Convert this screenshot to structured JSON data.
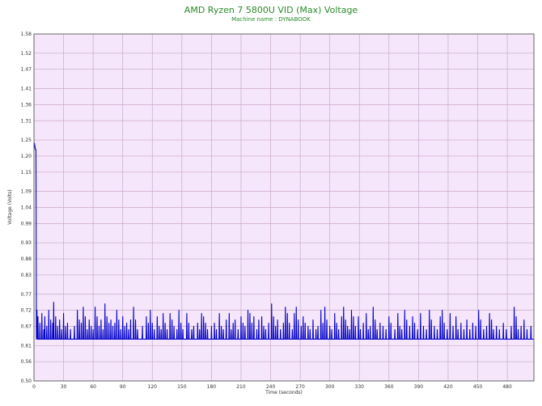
{
  "colors": {
    "title": "#2a8a2a",
    "plot_bg": "#f5e6fb",
    "grid": "#c9a9c9",
    "series": "#0000c8",
    "axis": "#666666"
  },
  "chart_data": {
    "type": "line",
    "title": "AMD Ryzen 7 5800U VID (Max) Voltage",
    "subtitle": "Machine name : DYNABOOK",
    "xlabel": "Time (seconds)",
    "ylabel": "Voltage (Volts)",
    "xlim": [
      0,
      507
    ],
    "ylim": [
      0.5,
      1.58
    ],
    "x_ticks": [
      "0",
      "30",
      "60",
      "90",
      "120",
      "150",
      "180",
      "210",
      "240",
      "270",
      "300",
      "330",
      "360",
      "390",
      "420",
      "450",
      "480"
    ],
    "y_ticks": [
      "0.50",
      "0.56",
      "0.61",
      "0.67",
      "0.72",
      "0.77",
      "0.83",
      "0.88",
      "0.93",
      "0.99",
      "1.04",
      "1.09",
      "1.15",
      "1.20",
      "1.25",
      "1.31",
      "1.36",
      "1.41",
      "1.47",
      "1.52",
      "1.58"
    ],
    "grid": true,
    "legend": "none",
    "series": [
      {
        "baseline": 0.63,
        "start": [
          [
            0,
            1.22
          ],
          [
            0.5,
            1.24
          ],
          [
            1,
            1.23
          ],
          [
            1.5,
            1.22
          ],
          [
            2,
            1.22
          ],
          [
            2.5,
            0.63
          ],
          [
            3,
            0.72
          ],
          [
            3.5,
            0.63
          ]
        ],
        "spikes": [
          [
            4,
            0.7
          ],
          [
            6,
            0.68
          ],
          [
            8,
            0.71
          ],
          [
            10,
            0.66
          ],
          [
            11,
            0.7
          ],
          [
            13,
            0.67
          ],
          [
            15,
            0.72
          ],
          [
            17,
            0.69
          ],
          [
            19,
            0.68
          ],
          [
            20,
            0.745
          ],
          [
            22,
            0.7
          ],
          [
            24,
            0.67
          ],
          [
            26,
            0.69
          ],
          [
            28,
            0.66
          ],
          [
            30,
            0.71
          ],
          [
            32,
            0.67
          ],
          [
            34,
            0.68
          ],
          [
            37,
            0.66
          ],
          [
            41,
            0.67
          ],
          [
            44,
            0.72
          ],
          [
            46,
            0.69
          ],
          [
            48,
            0.68
          ],
          [
            50,
            0.73
          ],
          [
            52,
            0.7
          ],
          [
            54,
            0.66
          ],
          [
            56,
            0.69
          ],
          [
            58,
            0.67
          ],
          [
            60,
            0.66
          ],
          [
            62,
            0.73
          ],
          [
            64,
            0.7
          ],
          [
            66,
            0.67
          ],
          [
            68,
            0.69
          ],
          [
            70,
            0.66
          ],
          [
            72,
            0.74
          ],
          [
            74,
            0.7
          ],
          [
            76,
            0.68
          ],
          [
            78,
            0.69
          ],
          [
            80,
            0.67
          ],
          [
            82,
            0.68
          ],
          [
            84,
            0.72
          ],
          [
            86,
            0.69
          ],
          [
            88,
            0.66
          ],
          [
            90,
            0.7
          ],
          [
            92,
            0.67
          ],
          [
            94,
            0.68
          ],
          [
            96,
            0.66
          ],
          [
            98,
            0.69
          ],
          [
            101,
            0.73
          ],
          [
            103,
            0.69
          ],
          [
            105,
            0.66
          ],
          [
            110,
            0.67
          ],
          [
            114,
            0.7
          ],
          [
            116,
            0.68
          ],
          [
            118,
            0.72
          ],
          [
            120,
            0.68
          ],
          [
            122,
            0.66
          ],
          [
            125,
            0.7
          ],
          [
            127,
            0.67
          ],
          [
            129,
            0.66
          ],
          [
            131,
            0.71
          ],
          [
            133,
            0.68
          ],
          [
            135,
            0.66
          ],
          [
            138,
            0.71
          ],
          [
            140,
            0.69
          ],
          [
            142,
            0.67
          ],
          [
            145,
            0.66
          ],
          [
            147,
            0.72
          ],
          [
            149,
            0.68
          ],
          [
            151,
            0.66
          ],
          [
            155,
            0.71
          ],
          [
            157,
            0.68
          ],
          [
            160,
            0.66
          ],
          [
            162,
            0.67
          ],
          [
            166,
            0.68
          ],
          [
            168,
            0.66
          ],
          [
            170,
            0.71
          ],
          [
            172,
            0.7
          ],
          [
            174,
            0.68
          ],
          [
            176,
            0.66
          ],
          [
            180,
            0.67
          ],
          [
            183,
            0.68
          ],
          [
            185,
            0.66
          ],
          [
            188,
            0.71
          ],
          [
            190,
            0.67
          ],
          [
            192,
            0.66
          ],
          [
            195,
            0.69
          ],
          [
            198,
            0.71
          ],
          [
            200,
            0.66
          ],
          [
            202,
            0.68
          ],
          [
            204,
            0.69
          ],
          [
            207,
            0.66
          ],
          [
            210,
            0.7
          ],
          [
            212,
            0.68
          ],
          [
            214,
            0.67
          ],
          [
            217,
            0.72
          ],
          [
            219,
            0.71
          ],
          [
            221,
            0.68
          ],
          [
            223,
            0.7
          ],
          [
            226,
            0.66
          ],
          [
            228,
            0.69
          ],
          [
            231,
            0.7
          ],
          [
            233,
            0.67
          ],
          [
            235,
            0.66
          ],
          [
            238,
            0.68
          ],
          [
            241,
            0.74
          ],
          [
            243,
            0.7
          ],
          [
            245,
            0.67
          ],
          [
            247,
            0.69
          ],
          [
            250,
            0.66
          ],
          [
            253,
            0.68
          ],
          [
            255,
            0.73
          ],
          [
            257,
            0.71
          ],
          [
            259,
            0.68
          ],
          [
            262,
            0.66
          ],
          [
            264,
            0.71
          ],
          [
            266,
            0.73
          ],
          [
            268,
            0.69
          ],
          [
            271,
            0.67
          ],
          [
            273,
            0.7
          ],
          [
            275,
            0.68
          ],
          [
            278,
            0.67
          ],
          [
            280,
            0.66
          ],
          [
            283,
            0.69
          ],
          [
            286,
            0.66
          ],
          [
            288,
            0.67
          ],
          [
            291,
            0.72
          ],
          [
            293,
            0.68
          ],
          [
            295,
            0.73
          ],
          [
            297,
            0.69
          ],
          [
            300,
            0.67
          ],
          [
            302,
            0.66
          ],
          [
            305,
            0.71
          ],
          [
            307,
            0.68
          ],
          [
            309,
            0.66
          ],
          [
            312,
            0.7
          ],
          [
            314,
            0.73
          ],
          [
            316,
            0.69
          ],
          [
            318,
            0.67
          ],
          [
            320,
            0.66
          ],
          [
            322,
            0.72
          ],
          [
            324,
            0.7
          ],
          [
            326,
            0.67
          ],
          [
            329,
            0.7
          ],
          [
            331,
            0.66
          ],
          [
            334,
            0.68
          ],
          [
            337,
            0.71
          ],
          [
            339,
            0.66
          ],
          [
            341,
            0.67
          ],
          [
            344,
            0.73
          ],
          [
            346,
            0.69
          ],
          [
            348,
            0.66
          ],
          [
            351,
            0.68
          ],
          [
            354,
            0.67
          ],
          [
            357,
            0.66
          ],
          [
            360,
            0.7
          ],
          [
            362,
            0.68
          ],
          [
            366,
            0.66
          ],
          [
            369,
            0.71
          ],
          [
            371,
            0.67
          ],
          [
            373,
            0.66
          ],
          [
            376,
            0.72
          ],
          [
            378,
            0.69
          ],
          [
            381,
            0.67
          ],
          [
            384,
            0.7
          ],
          [
            386,
            0.68
          ],
          [
            389,
            0.66
          ],
          [
            392,
            0.71
          ],
          [
            395,
            0.67
          ],
          [
            398,
            0.66
          ],
          [
            401,
            0.72
          ],
          [
            403,
            0.69
          ],
          [
            406,
            0.67
          ],
          [
            409,
            0.66
          ],
          [
            412,
            0.7
          ],
          [
            414,
            0.72
          ],
          [
            416,
            0.68
          ],
          [
            419,
            0.66
          ],
          [
            422,
            0.71
          ],
          [
            425,
            0.67
          ],
          [
            428,
            0.7
          ],
          [
            430,
            0.66
          ],
          [
            433,
            0.68
          ],
          [
            436,
            0.66
          ],
          [
            439,
            0.69
          ],
          [
            442,
            0.66
          ],
          [
            445,
            0.68
          ],
          [
            448,
            0.67
          ],
          [
            451,
            0.72
          ],
          [
            453,
            0.69
          ],
          [
            456,
            0.66
          ],
          [
            459,
            0.67
          ],
          [
            462,
            0.71
          ],
          [
            464,
            0.69
          ],
          [
            466,
            0.66
          ],
          [
            469,
            0.67
          ],
          [
            472,
            0.66
          ],
          [
            476,
            0.68
          ],
          [
            479,
            0.66
          ],
          [
            484,
            0.67
          ],
          [
            487,
            0.73
          ],
          [
            489,
            0.7
          ],
          [
            491,
            0.66
          ],
          [
            494,
            0.67
          ],
          [
            497,
            0.69
          ],
          [
            500,
            0.66
          ],
          [
            504,
            0.67
          ]
        ]
      }
    ]
  }
}
